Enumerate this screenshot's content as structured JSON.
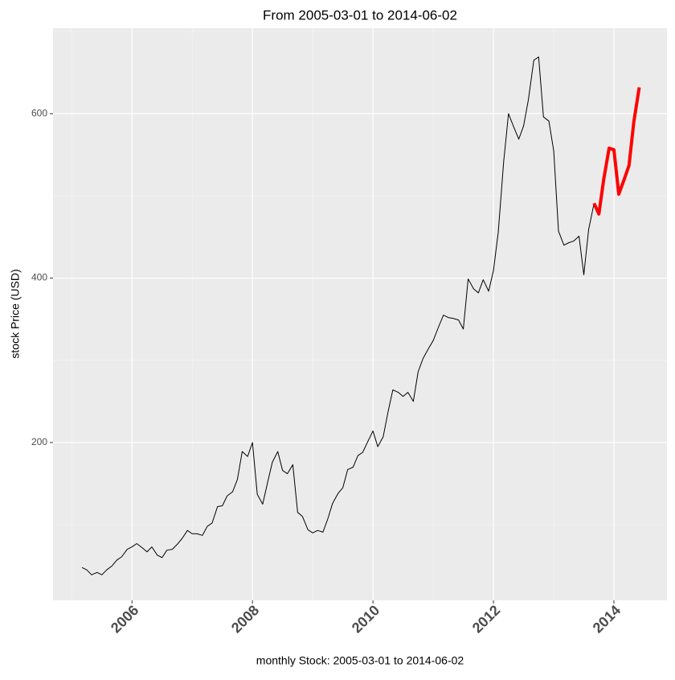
{
  "chart_data": {
    "type": "line",
    "title": "From 2005-03-01 to 2014-06-02",
    "x_label": "monthly Stock: 2005-03-01 to 2014-06-02",
    "y_label": "stock Price (USD)",
    "xlim": [
      2004.69,
      2014.88
    ],
    "xticks": [
      2006,
      2008,
      2010,
      2012,
      2014
    ],
    "ylim": [
      8,
      704
    ],
    "yticks": [
      200,
      400,
      600
    ],
    "grid": true,
    "series": [
      {
        "color": "#000000",
        "width": 1,
        "x": [
          2005.17,
          2005.25,
          2005.33,
          2005.42,
          2005.5,
          2005.58,
          2005.67,
          2005.75,
          2005.83,
          2005.92,
          2006.0,
          2006.08,
          2006.17,
          2006.25,
          2006.33,
          2006.42,
          2006.5,
          2006.58,
          2006.67,
          2006.75,
          2006.83,
          2006.92,
          2007.0,
          2007.08,
          2007.17,
          2007.25,
          2007.33,
          2007.42,
          2007.5,
          2007.58,
          2007.67,
          2007.75,
          2007.83,
          2007.92,
          2008.0,
          2008.08,
          2008.17,
          2008.25,
          2008.33,
          2008.42,
          2008.5,
          2008.58,
          2008.67,
          2008.75,
          2008.83,
          2008.92,
          2009.0,
          2009.08,
          2009.17,
          2009.25,
          2009.33,
          2009.42,
          2009.5,
          2009.58,
          2009.67,
          2009.75,
          2009.83,
          2009.92,
          2010.0,
          2010.08,
          2010.17,
          2010.25,
          2010.33,
          2010.42,
          2010.5,
          2010.58,
          2010.67,
          2010.75,
          2010.83,
          2010.92,
          2011.0,
          2011.08,
          2011.17,
          2011.25,
          2011.33,
          2011.42,
          2011.5,
          2011.58,
          2011.67,
          2011.75,
          2011.83,
          2011.92,
          2012.0,
          2012.08,
          2012.17,
          2012.25,
          2012.33,
          2012.42,
          2012.5,
          2012.58,
          2012.67,
          2012.75,
          2012.83,
          2012.92,
          2013.0,
          2013.08,
          2013.17,
          2013.25,
          2013.33,
          2013.42,
          2013.5,
          2013.58,
          2013.67
        ],
        "values": [
          48,
          45,
          39,
          42,
          39,
          45,
          50,
          57,
          61,
          70,
          73,
          77,
          72,
          67,
          73,
          63,
          60,
          69,
          70,
          76,
          83,
          93,
          89,
          89,
          87,
          98,
          102,
          122,
          123,
          135,
          140,
          155,
          189,
          183,
          200,
          137,
          125,
          151,
          176,
          189,
          166,
          162,
          173,
          115,
          110,
          94,
          90,
          93,
          91,
          107,
          126,
          138,
          145,
          167,
          170,
          184,
          188,
          202,
          214,
          195,
          207,
          237,
          264,
          261,
          256,
          261,
          250,
          286,
          302,
          314,
          324,
          339,
          355,
          352,
          351,
          349,
          338,
          399,
          387,
          382,
          398,
          384,
          409,
          456,
          542,
          600,
          585,
          569,
          585,
          617,
          665,
          669,
          596,
          591,
          555,
          457,
          440,
          443,
          445,
          451,
          404,
          459,
          491
        ]
      },
      {
        "color": "#ff0000",
        "width": 4,
        "x": [
          2013.67,
          2013.75,
          2013.83,
          2013.92,
          2014.0,
          2014.08,
          2014.17,
          2014.25,
          2014.33,
          2014.42
        ],
        "values": [
          491,
          478,
          520,
          558,
          556,
          502,
          520,
          537,
          590,
          632
        ]
      }
    ]
  }
}
